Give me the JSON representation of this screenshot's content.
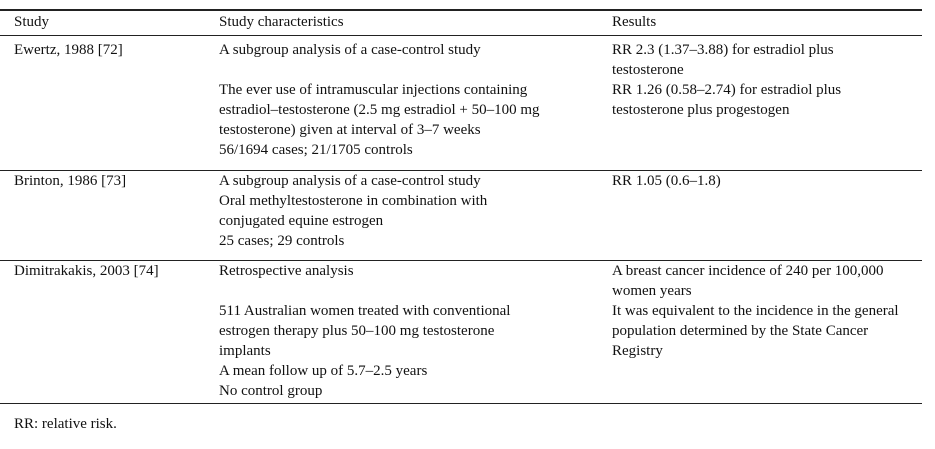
{
  "headers": [
    "Study",
    "Study characteristics",
    "Results"
  ],
  "rows": [
    {
      "study": "Ewertz, 1988 [72]",
      "characteristics": [
        "A subgroup analysis of a case-control study",
        "",
        "The ever use of intramuscular injections containing",
        "estradiol–testosterone (2.5 mg estradiol + 50–100 mg",
        "testosterone) given at interval of 3–7 weeks",
        "56/1694 cases; 21/1705 controls"
      ],
      "results": [
        "RR 2.3 (1.37–3.88) for estradiol plus",
        "testosterone",
        "RR 1.26 (0.58–2.74) for estradiol plus",
        "testosterone plus progestogen"
      ]
    },
    {
      "study": "Brinton, 1986 [73]",
      "characteristics": [
        "A subgroup analysis of a case-control study",
        "Oral methyltestosterone in combination with",
        "conjugated equine estrogen",
        "25 cases; 29 controls"
      ],
      "results": [
        "RR 1.05 (0.6–1.8)"
      ]
    },
    {
      "study": "Dimitrakakis, 2003 [74]",
      "characteristics": [
        "Retrospective analysis",
        "",
        "511 Australian women treated with conventional",
        "estrogen therapy plus 50–100 mg testosterone",
        "implants",
        "A mean follow up of 5.7–2.5 years",
        "No control group"
      ],
      "results": [
        "A breast cancer incidence of 240 per 100,000",
        "women years",
        "It was equivalent to the incidence in the general",
        "population determined by the State Cancer",
        "Registry"
      ]
    }
  ],
  "footnote": "RR: relative risk."
}
